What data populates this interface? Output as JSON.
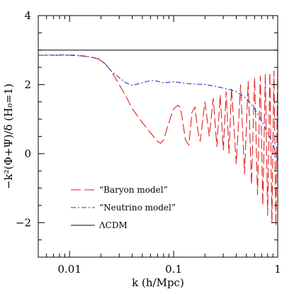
{
  "chart_data": {
    "type": "line",
    "xscale": "log",
    "xlim": [
      0.005,
      1
    ],
    "ylim": [
      -3,
      4
    ],
    "xlabel": "k (h/Mpc)",
    "ylabel": "−k²(Φ+Ψ)/δ   (H₀=1)",
    "xticks": [
      0.01,
      0.1,
      1
    ],
    "xtick_labels": [
      "0.01",
      "0.1",
      "1"
    ],
    "yticks": [
      -2,
      0,
      2,
      4
    ],
    "ytick_labels": [
      "−2",
      "0",
      "2",
      "4"
    ],
    "grid": false,
    "legend_position": "lower-left",
    "series": [
      {
        "name": "“Baryon model”",
        "style": "long-dash",
        "color": "#e02020",
        "x": [
          0.005,
          0.008,
          0.01,
          0.013,
          0.016,
          0.019,
          0.022,
          0.025,
          0.03,
          0.035,
          0.04,
          0.05,
          0.06,
          0.07,
          0.075,
          0.08,
          0.09,
          0.1,
          0.11,
          0.115,
          0.12,
          0.13,
          0.14,
          0.15,
          0.16,
          0.17,
          0.18,
          0.2,
          0.22,
          0.24,
          0.26,
          0.28,
          0.3,
          0.32,
          0.34,
          0.36,
          0.4,
          0.44,
          0.48,
          0.52,
          0.56,
          0.6,
          0.64,
          0.68,
          0.72,
          0.76,
          0.8,
          0.84,
          0.88,
          0.92,
          0.96,
          1.0
        ],
        "y": [
          2.85,
          2.85,
          2.85,
          2.83,
          2.8,
          2.74,
          2.6,
          2.4,
          2.0,
          1.65,
          1.3,
          0.9,
          0.6,
          0.35,
          0.3,
          0.4,
          0.9,
          1.3,
          1.4,
          1.35,
          1.1,
          0.4,
          0.25,
          1.2,
          1.35,
          0.7,
          0.35,
          1.5,
          0.5,
          1.6,
          0.2,
          1.7,
          0.1,
          1.8,
          0.0,
          1.9,
          -0.3,
          2.0,
          -0.6,
          2.1,
          -0.9,
          2.2,
          -1.2,
          2.25,
          -1.5,
          2.3,
          -1.8,
          2.35,
          -2.0,
          2.4,
          -2.1,
          2.45
        ]
      },
      {
        "name": "“Neutrino model”",
        "style": "dash-dot",
        "color": "#3030d0",
        "x": [
          0.005,
          0.008,
          0.01,
          0.013,
          0.016,
          0.019,
          0.022,
          0.025,
          0.03,
          0.035,
          0.04,
          0.05,
          0.06,
          0.07,
          0.08,
          0.1,
          0.12,
          0.15,
          0.2,
          0.25,
          0.3,
          0.35,
          0.4,
          0.5,
          0.6,
          0.7,
          0.8,
          0.9,
          1.0
        ],
        "y": [
          2.85,
          2.86,
          2.86,
          2.84,
          2.8,
          2.75,
          2.6,
          2.4,
          2.2,
          2.05,
          1.98,
          2.05,
          2.12,
          2.1,
          2.05,
          2.08,
          2.05,
          2.02,
          2.0,
          1.95,
          1.9,
          1.85,
          1.8,
          1.6,
          1.3,
          0.95,
          0.6,
          0.3,
          -0.2
        ]
      },
      {
        "name": "ΛCDM",
        "style": "solid",
        "color": "#000000",
        "x": [
          0.005,
          1.0
        ],
        "y": [
          3.0,
          3.0
        ]
      }
    ]
  }
}
